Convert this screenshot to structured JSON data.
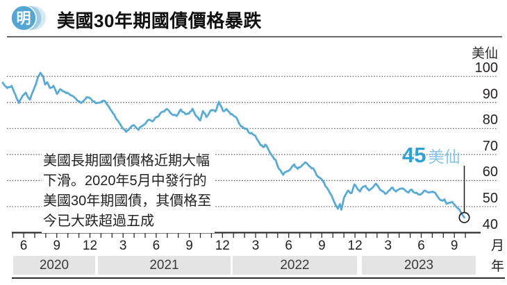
{
  "brand": {
    "logo_char": "明"
  },
  "header": {
    "title": "美國30年期國債價格暴跌"
  },
  "chart_data": {
    "type": "line",
    "title": "美國30年期國債價格暴跌",
    "grid": "horizontal-dotted",
    "legend_position": "none",
    "y_axis": {
      "unit": "美仙",
      "ticks": [
        100,
        90,
        80,
        70,
        60,
        50,
        40
      ],
      "range": [
        40,
        100
      ]
    },
    "x_axis": {
      "month_unit": "月",
      "year_unit": "年",
      "month_labels": [
        "6",
        "9",
        "12",
        "3",
        "6",
        "9",
        "12",
        "3",
        "6",
        "9",
        "12",
        "3",
        "6",
        "9"
      ],
      "years": [
        "2020",
        "2021",
        "2022",
        "2023"
      ],
      "x_unit_note": "t = months since May 2020"
    },
    "annotation": {
      "lines": [
        "美國長期國債價格近期大幅",
        "下滑。2020年5月中發行的",
        "美國30年期國債，其價格至",
        "今已大跌超過五成"
      ]
    },
    "callout": {
      "value": "45",
      "unit": "美仙"
    },
    "series": [
      {
        "name": "美國30年期國債價格(美仙)",
        "points": [
          [
            -0.9,
            97.6
          ],
          [
            -0.5,
            95.5
          ],
          [
            -0.1,
            96.4
          ],
          [
            0.25,
            93.0
          ],
          [
            0.56,
            89.8
          ],
          [
            0.88,
            92.4
          ],
          [
            1.19,
            93.8
          ],
          [
            1.57,
            91.1
          ],
          [
            2.0,
            96.0
          ],
          [
            2.32,
            100.0
          ],
          [
            2.51,
            101.4
          ],
          [
            2.76,
            100.0
          ],
          [
            2.94,
            96.9
          ],
          [
            3.13,
            97.8
          ],
          [
            3.38,
            95.5
          ],
          [
            3.7,
            96.4
          ],
          [
            4.01,
            93.3
          ],
          [
            4.32,
            95.1
          ],
          [
            4.7,
            94.2
          ],
          [
            4.95,
            93.8
          ],
          [
            5.58,
            92.0
          ],
          [
            6.2,
            89.8
          ],
          [
            6.7,
            92.0
          ],
          [
            7.14,
            91.1
          ],
          [
            7.64,
            89.8
          ],
          [
            8.27,
            90.7
          ],
          [
            8.71,
            88.4
          ],
          [
            9.09,
            85.8
          ],
          [
            9.52,
            83.1
          ],
          [
            9.84,
            80.9
          ],
          [
            10.28,
            78.7
          ],
          [
            10.59,
            80.0
          ],
          [
            10.97,
            81.3
          ],
          [
            11.4,
            79.5
          ],
          [
            11.84,
            81.3
          ],
          [
            12.22,
            83.1
          ],
          [
            12.66,
            82.7
          ],
          [
            13.1,
            84.4
          ],
          [
            13.47,
            86.2
          ],
          [
            13.97,
            87.5
          ],
          [
            14.41,
            85.5
          ],
          [
            14.85,
            84.8
          ],
          [
            15.23,
            87.3
          ],
          [
            15.66,
            85.5
          ],
          [
            15.98,
            85.8
          ],
          [
            16.29,
            87.6
          ],
          [
            16.67,
            84.5
          ],
          [
            16.98,
            83.1
          ],
          [
            17.23,
            86.7
          ],
          [
            17.54,
            84.4
          ],
          [
            17.98,
            87.1
          ],
          [
            18.36,
            86.5
          ],
          [
            18.67,
            90.2
          ],
          [
            19.05,
            86.7
          ],
          [
            19.36,
            87.5
          ],
          [
            19.74,
            85.5
          ],
          [
            20.18,
            84.5
          ],
          [
            20.61,
            81.3
          ],
          [
            20.93,
            80.2
          ],
          [
            21.12,
            80.0
          ],
          [
            21.43,
            78.3
          ],
          [
            21.74,
            77.8
          ],
          [
            21.99,
            77.2
          ],
          [
            22.37,
            74.2
          ],
          [
            22.68,
            72.9
          ],
          [
            22.87,
            73.8
          ],
          [
            23.31,
            70.7
          ],
          [
            23.62,
            68.8
          ],
          [
            23.81,
            68.0
          ],
          [
            24.0,
            65.5
          ],
          [
            24.25,
            64.0
          ],
          [
            24.5,
            62.2
          ],
          [
            24.81,
            63.5
          ],
          [
            25.06,
            64.0
          ],
          [
            25.5,
            66.2
          ],
          [
            25.81,
            64.5
          ],
          [
            26.13,
            65.5
          ],
          [
            26.5,
            67.0
          ],
          [
            26.88,
            65.5
          ],
          [
            27.19,
            64.8
          ],
          [
            27.51,
            62.2
          ],
          [
            27.82,
            61.0
          ],
          [
            28.07,
            60.0
          ],
          [
            28.45,
            57.3
          ],
          [
            28.76,
            55.0
          ],
          [
            29.01,
            52.9
          ],
          [
            29.26,
            50.5
          ],
          [
            29.45,
            49.2
          ],
          [
            29.64,
            51.0
          ],
          [
            29.76,
            48.8
          ],
          [
            30.01,
            53.5
          ],
          [
            30.39,
            56.2
          ],
          [
            30.7,
            55.2
          ],
          [
            30.95,
            58.5
          ],
          [
            31.27,
            56.5
          ],
          [
            31.45,
            55.8
          ],
          [
            31.7,
            57.5
          ],
          [
            31.95,
            58.0
          ],
          [
            32.27,
            56.2
          ],
          [
            32.58,
            57.2
          ],
          [
            32.89,
            58.8
          ],
          [
            33.21,
            57.0
          ],
          [
            33.52,
            55.8
          ],
          [
            33.83,
            55.0
          ],
          [
            34.09,
            56.2
          ],
          [
            34.4,
            57.3
          ],
          [
            34.71,
            55.8
          ],
          [
            35.03,
            56.8
          ],
          [
            35.34,
            57.0
          ],
          [
            35.65,
            55.8
          ],
          [
            35.84,
            55.4
          ],
          [
            36.15,
            56.5
          ],
          [
            36.47,
            55.2
          ],
          [
            36.84,
            54.6
          ],
          [
            37.16,
            55.5
          ],
          [
            37.41,
            56.0
          ],
          [
            37.72,
            55.4
          ],
          [
            38.03,
            55.8
          ],
          [
            38.35,
            54.7
          ],
          [
            38.6,
            53.2
          ],
          [
            38.85,
            52.4
          ],
          [
            39.1,
            52.8
          ],
          [
            39.29,
            51.1
          ],
          [
            39.54,
            51.5
          ],
          [
            39.79,
            51.8
          ],
          [
            40.2,
            49.8
          ],
          [
            40.45,
            48.9
          ],
          [
            40.65,
            47.3
          ],
          [
            40.9,
            45.8
          ]
        ]
      }
    ],
    "colors": {
      "line": "#58a9d4",
      "callout_number": "#2f9fd4",
      "callout_unit": "#85c4e3",
      "gridline": "#555555",
      "axis": "#2b2b2b",
      "year_band": "#e4e4e4",
      "logo_main": "#55a6d2",
      "logo_swoosh1": "#9fcbe4",
      "logo_swoosh2": "#d6e8f3"
    }
  }
}
